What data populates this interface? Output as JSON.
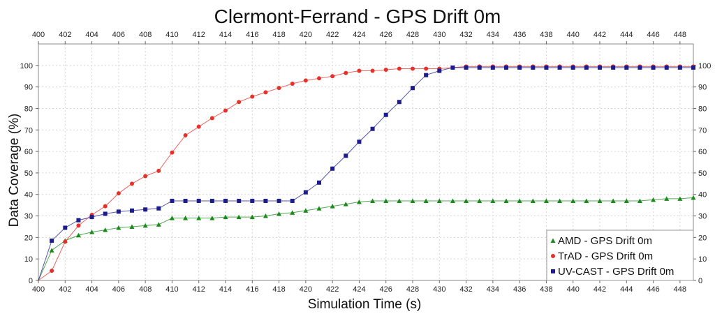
{
  "chart_data": {
    "type": "line",
    "title": "Clermont-Ferrand - GPS Drift 0m",
    "xlabel": "Simulation Time (s)",
    "ylabel": "Data Coverage (%)",
    "xlim": [
      400,
      449
    ],
    "ylim": [
      0,
      110
    ],
    "x_ticks": [
      400,
      402,
      404,
      406,
      408,
      410,
      412,
      414,
      416,
      418,
      420,
      422,
      424,
      426,
      428,
      430,
      432,
      434,
      436,
      438,
      440,
      442,
      444,
      446,
      448
    ],
    "y_ticks": [
      0,
      10,
      20,
      30,
      40,
      50,
      60,
      70,
      80,
      90,
      100
    ],
    "grid": true,
    "legend_position": "bottom-right",
    "x": [
      400,
      401,
      402,
      403,
      404,
      405,
      406,
      407,
      408,
      409,
      410,
      411,
      412,
      413,
      414,
      415,
      416,
      417,
      418,
      419,
      420,
      421,
      422,
      423,
      424,
      425,
      426,
      427,
      428,
      429,
      430,
      431,
      432,
      433,
      434,
      435,
      436,
      437,
      438,
      439,
      440,
      441,
      442,
      443,
      444,
      445,
      446,
      447,
      448,
      449
    ],
    "series": [
      {
        "name": "AMD - GPS Drift 0m",
        "color": "#1a8a1a",
        "marker": "triangle",
        "values": [
          0,
          14,
          18.5,
          21,
          22.5,
          23.5,
          24.5,
          25,
          25.5,
          26,
          29,
          29,
          29,
          29,
          29.5,
          29.5,
          29.5,
          30,
          31,
          31.5,
          32.5,
          33.5,
          34.5,
          35.5,
          36.5,
          37,
          37,
          37,
          37,
          37,
          37,
          37,
          37,
          37,
          37,
          37,
          37,
          37,
          37,
          37,
          37,
          37,
          37,
          37,
          37,
          37,
          37.5,
          38,
          38,
          38.5
        ]
      },
      {
        "name": "TrAD - GPS Drift 0m",
        "color": "#e8302a",
        "marker": "circle",
        "values": [
          0,
          4.5,
          18,
          25.5,
          30.5,
          34.5,
          40.5,
          45,
          48.5,
          51,
          59.5,
          67.5,
          71.5,
          75.5,
          79,
          83,
          85.5,
          87.5,
          89.5,
          91.5,
          93,
          94,
          95,
          96.5,
          97.5,
          97.5,
          98,
          98.5,
          98.5,
          98.5,
          98.5,
          99,
          99.5,
          99.5,
          99.5,
          99.5,
          99.5,
          99.5,
          99.5,
          99.5,
          99.5,
          99.5,
          99.5,
          99.5,
          99.5,
          99.5,
          99.5,
          99.5,
          99.5,
          99.5
        ]
      },
      {
        "name": "UV-CAST - GPS Drift 0m",
        "color": "#1c1c8c",
        "marker": "square",
        "values": [
          0,
          18.5,
          24.5,
          28,
          29.5,
          31,
          32,
          32.5,
          33,
          33.5,
          37,
          37,
          37,
          37,
          37,
          37,
          37,
          37,
          37,
          37,
          41,
          45.5,
          52,
          58,
          64.5,
          70.5,
          77,
          83,
          89.5,
          95.5,
          97.5,
          99,
          99,
          99,
          99,
          99,
          99,
          99,
          99,
          99,
          99,
          99,
          99,
          99,
          99,
          99,
          99,
          99,
          99,
          99
        ]
      }
    ]
  }
}
